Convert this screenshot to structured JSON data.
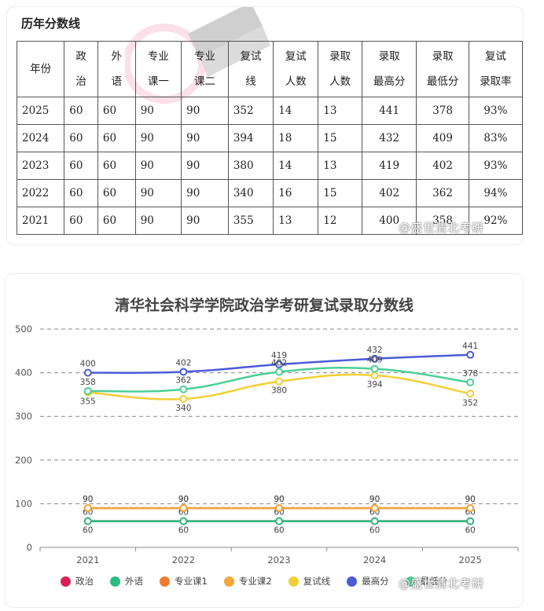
{
  "table_section": {
    "title": "历年分数线",
    "headers": [
      [
        "年份"
      ],
      [
        "政",
        "治"
      ],
      [
        "外",
        "语"
      ],
      [
        "专业",
        "课一"
      ],
      [
        "专业",
        "课二"
      ],
      [
        "复试",
        "线"
      ],
      [
        "复试",
        "人数"
      ],
      [
        "录取",
        "人数"
      ],
      [
        "录取",
        "最高分"
      ],
      [
        "录取",
        "最低分"
      ],
      [
        "复试",
        "录取率"
      ]
    ],
    "rows": [
      [
        "2025",
        "60",
        "60",
        "90",
        "90",
        "352",
        "14",
        "13",
        "441",
        "378",
        "93%"
      ],
      [
        "2024",
        "60",
        "60",
        "90",
        "90",
        "394",
        "18",
        "15",
        "432",
        "409",
        "83%"
      ],
      [
        "2023",
        "60",
        "60",
        "90",
        "90",
        "380",
        "14",
        "13",
        "419",
        "402",
        "93%"
      ],
      [
        "2022",
        "60",
        "60",
        "90",
        "90",
        "340",
        "16",
        "15",
        "402",
        "362",
        "94%"
      ],
      [
        "2021",
        "60",
        "60",
        "90",
        "90",
        "355",
        "13",
        "12",
        "400",
        "358",
        "92%"
      ]
    ],
    "watermark": "@盛世清北考研"
  },
  "chart_data": {
    "type": "line",
    "title": "清华社会科学学院政治学考研复试录取分数线",
    "categories": [
      "2021",
      "2022",
      "2023",
      "2024",
      "2025"
    ],
    "ylim": [
      0,
      500
    ],
    "yticks": [
      0,
      100,
      200,
      300,
      400,
      500
    ],
    "grid": true,
    "legend_position": "bottom",
    "series": [
      {
        "name": "政治",
        "color": "#d81e52",
        "values": [
          60,
          60,
          60,
          60,
          60
        ]
      },
      {
        "name": "外语",
        "color": "#2bbd7e",
        "values": [
          60,
          60,
          60,
          60,
          60
        ]
      },
      {
        "name": "专业课1",
        "color": "#ee7c2f",
        "values": [
          90,
          90,
          90,
          90,
          90
        ]
      },
      {
        "name": "专业课2",
        "color": "#f0a83a",
        "values": [
          90,
          90,
          90,
          90,
          90
        ]
      },
      {
        "name": "复试线",
        "color": "#f2cf37",
        "values": [
          355,
          340,
          380,
          394,
          352
        ]
      },
      {
        "name": "最高分",
        "color": "#4b5bd6",
        "values": [
          400,
          402,
          419,
          432,
          441
        ]
      },
      {
        "name": "最低分",
        "color": "#4ccf96",
        "values": [
          358,
          362,
          402,
          409,
          378
        ]
      }
    ],
    "watermark": "@盛世清北考研"
  }
}
